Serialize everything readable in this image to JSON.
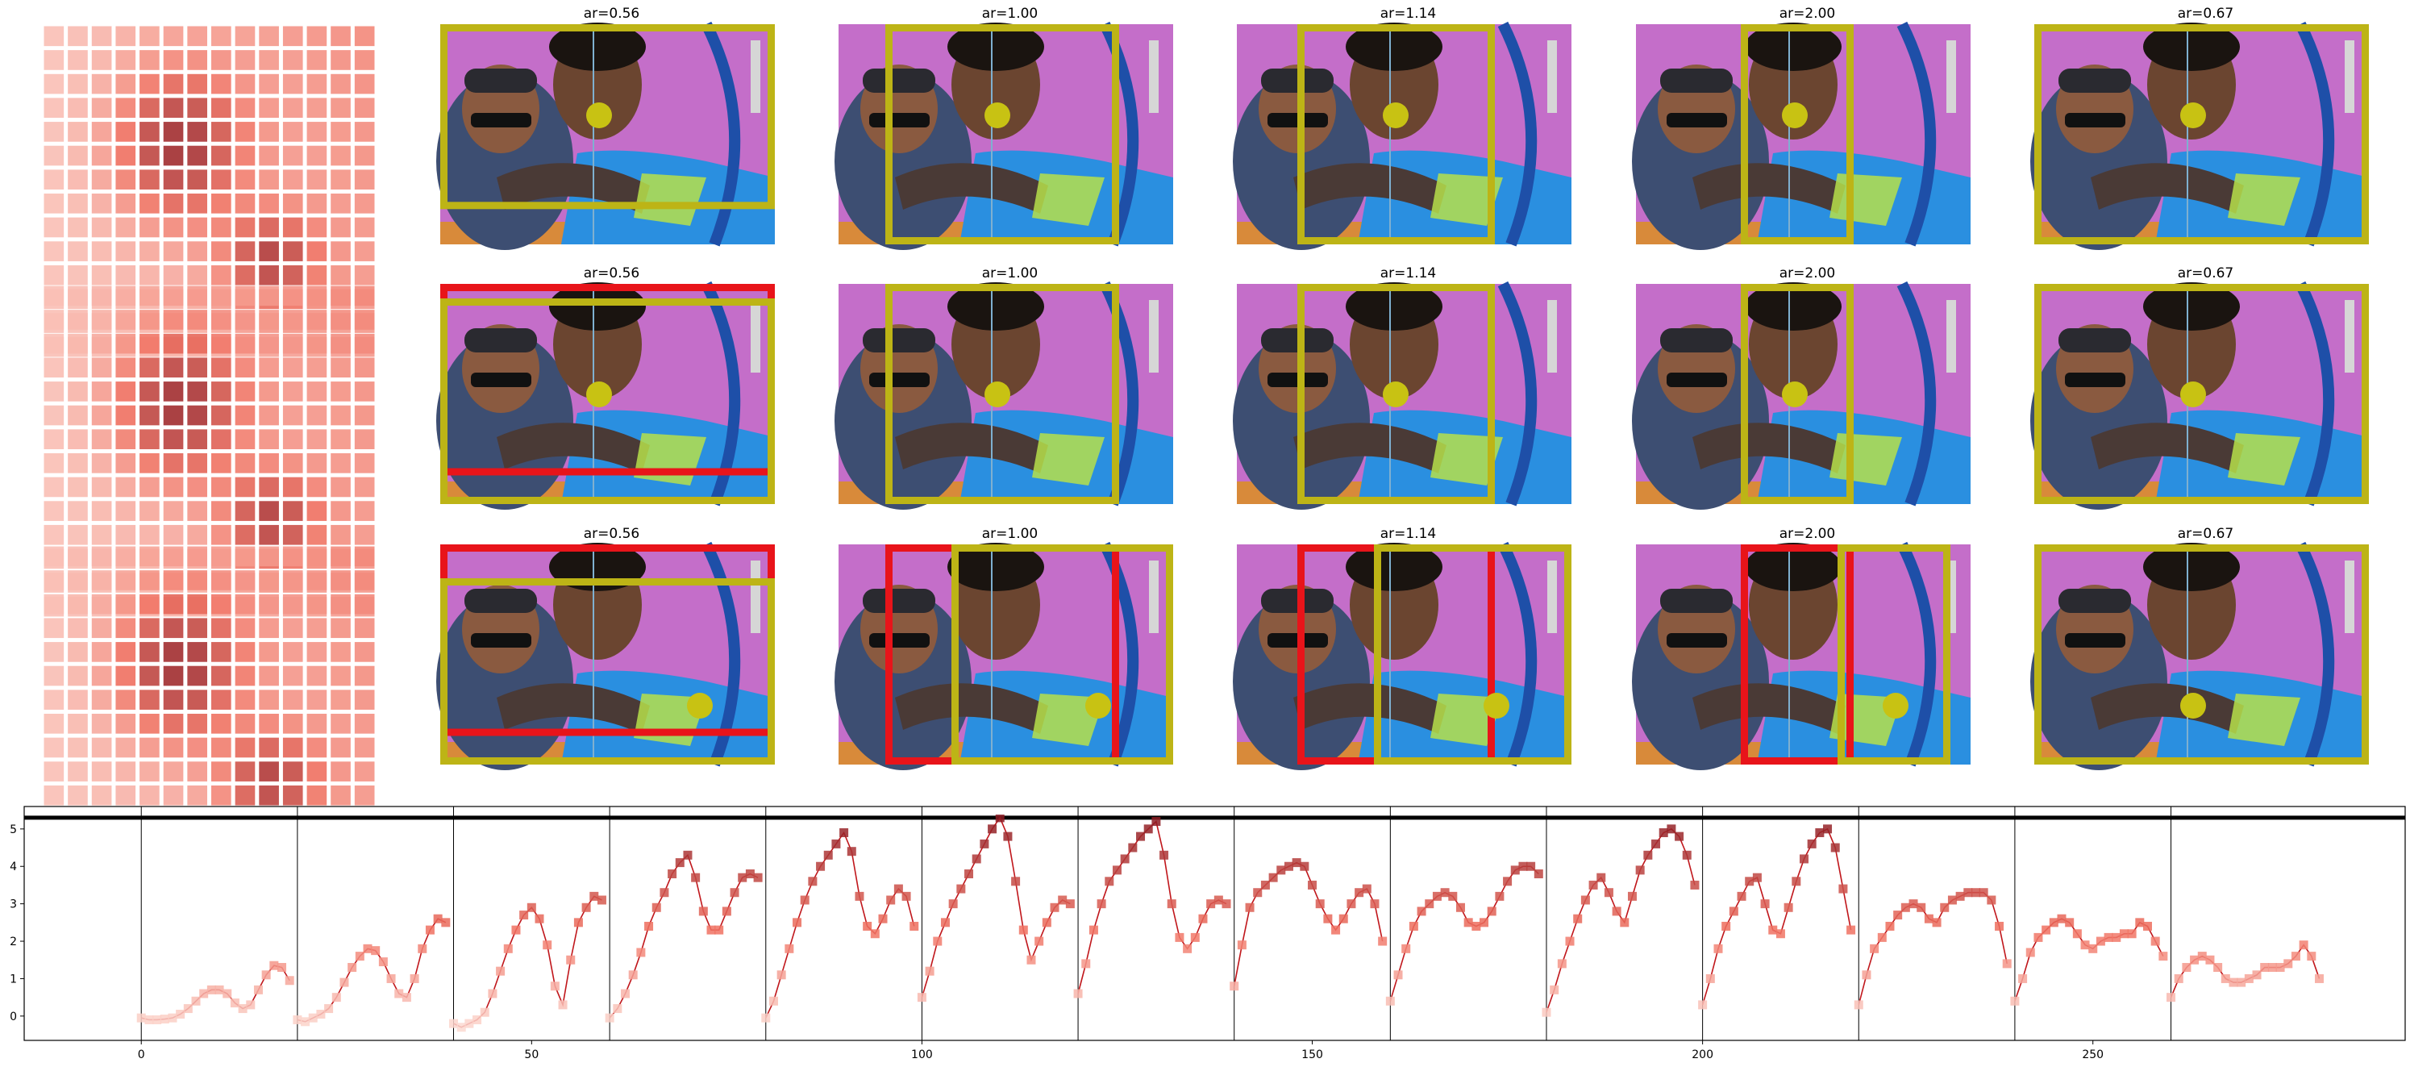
{
  "figure": {
    "rows": [
      {
        "panels": [
          {
            "title": "ar=0.56",
            "crop_aspect": 0.56,
            "has_red": false,
            "dot_label": "dot"
          },
          {
            "title": "ar=1.00",
            "crop_aspect": 1.0,
            "has_red": false
          },
          {
            "title": "ar=1.14",
            "crop_aspect": 1.14,
            "has_red": false
          },
          {
            "title": "ar=2.00",
            "crop_aspect": 2.0,
            "has_red": false
          },
          {
            "title": "ar=0.67",
            "crop_aspect": 0.67,
            "has_red": false
          }
        ]
      },
      {
        "panels": [
          {
            "title": "ar=0.56",
            "crop_aspect": 0.56,
            "has_red": true
          },
          {
            "title": "ar=1.00",
            "crop_aspect": 1.0,
            "has_red": false
          },
          {
            "title": "ar=1.14",
            "crop_aspect": 1.14,
            "has_red": false
          },
          {
            "title": "ar=2.00",
            "crop_aspect": 2.0,
            "has_red": false
          },
          {
            "title": "ar=0.67",
            "crop_aspect": 0.67,
            "has_red": false
          }
        ]
      },
      {
        "panels": [
          {
            "title": "ar=0.56",
            "crop_aspect": 0.56,
            "has_red": true
          },
          {
            "title": "ar=1.00",
            "crop_aspect": 1.0,
            "has_red": true
          },
          {
            "title": "ar=1.14",
            "crop_aspect": 1.14,
            "has_red": true
          },
          {
            "title": "ar=2.00",
            "crop_aspect": 2.0,
            "has_red": true
          },
          {
            "title": "ar=0.67",
            "crop_aspect": 0.67,
            "has_red": false
          }
        ]
      }
    ]
  },
  "colors": {
    "crop_box": "#bdb416",
    "red_box": "#e8141a",
    "dot": "#c8c213",
    "photo_bg": "#c46ec9",
    "shirt": "#2a8fe0",
    "skin": "#6b4530",
    "heat_low": "#fde7e0",
    "heat_high": "#8b1a22",
    "line": "#c0161b"
  },
  "chart_data": {
    "type": "line",
    "xlim": [
      -15,
      290
    ],
    "ylim": [
      -0.65,
      5.6
    ],
    "xticks": [
      0,
      50,
      100,
      150,
      200,
      250
    ],
    "yticks": [
      0,
      1,
      2,
      3,
      4,
      5
    ],
    "vlines": [
      0,
      20,
      40,
      60,
      80,
      100,
      120,
      140,
      160,
      180,
      200,
      220,
      240,
      260
    ],
    "hline": 5.3,
    "series": [
      {
        "x": [
          0,
          1,
          2,
          3,
          4,
          5,
          6,
          7,
          8,
          9,
          10,
          11,
          12,
          13,
          14,
          15,
          16,
          17,
          18,
          19,
          20,
          21,
          22,
          23,
          24,
          25,
          26,
          27,
          28,
          29,
          30,
          31,
          32,
          33,
          34,
          35,
          36,
          37,
          38,
          39,
          40,
          41,
          42,
          43,
          44,
          45,
          46,
          47,
          48,
          49,
          50,
          51,
          52,
          53,
          54,
          55,
          56,
          57,
          58,
          59,
          60,
          61,
          62,
          63,
          64,
          65,
          66,
          67,
          68,
          69,
          70,
          71,
          72,
          73,
          74,
          75,
          76,
          77,
          78,
          79,
          80,
          81,
          82,
          83,
          84,
          85,
          86,
          87,
          88,
          89,
          90,
          91,
          92,
          93,
          94,
          95,
          96,
          97,
          98,
          99,
          100,
          101,
          102,
          103,
          104,
          105,
          106,
          107,
          108,
          109,
          110,
          111,
          112,
          113,
          114,
          115,
          116,
          117,
          118,
          119,
          120,
          121,
          122,
          123,
          124,
          125,
          126,
          127,
          128,
          129,
          130,
          131,
          132,
          133,
          134,
          135,
          136,
          137,
          138,
          139,
          140,
          141,
          142,
          143,
          144,
          145,
          146,
          147,
          148,
          149,
          150,
          151,
          152,
          153,
          154,
          155,
          156,
          157,
          158,
          159,
          160,
          161,
          162,
          163,
          164,
          165,
          166,
          167,
          168,
          169,
          170,
          171,
          172,
          173,
          174,
          175,
          176,
          177,
          178,
          179,
          180,
          181,
          182,
          183,
          184,
          185,
          186,
          187,
          188,
          189,
          190,
          191,
          192,
          193,
          194,
          195,
          196,
          197,
          198,
          199,
          200,
          201,
          202,
          203,
          204,
          205,
          206,
          207,
          208,
          209,
          210,
          211,
          212,
          213,
          214,
          215,
          216,
          217,
          218,
          219,
          220,
          221,
          222,
          223,
          224,
          225,
          226,
          227,
          228,
          229,
          230,
          231,
          232,
          233,
          234,
          235,
          236,
          237,
          238,
          239,
          240,
          241,
          242,
          243,
          244,
          245,
          246,
          247,
          248,
          249,
          250,
          251,
          252,
          253,
          254,
          255,
          256,
          257,
          258,
          259,
          260,
          261,
          262,
          263,
          264,
          265,
          266,
          267,
          268,
          269,
          270,
          271,
          272,
          273,
          274,
          275,
          276,
          277,
          278,
          279
        ],
        "y": [
          -0.05,
          -0.1,
          -0.1,
          -0.08,
          -0.05,
          0.05,
          0.2,
          0.4,
          0.6,
          0.7,
          0.7,
          0.6,
          0.35,
          0.2,
          0.3,
          0.7,
          1.1,
          1.35,
          1.3,
          0.95,
          -0.1,
          -0.15,
          -0.05,
          0.05,
          0.2,
          0.5,
          0.9,
          1.3,
          1.6,
          1.8,
          1.75,
          1.45,
          1.0,
          0.6,
          0.5,
          1.0,
          1.8,
          2.3,
          2.6,
          2.5,
          -0.2,
          -0.3,
          -0.2,
          -0.1,
          0.1,
          0.6,
          1.2,
          1.8,
          2.3,
          2.7,
          2.9,
          2.6,
          1.9,
          0.8,
          0.3,
          1.5,
          2.5,
          2.9,
          3.2,
          3.1,
          -0.05,
          0.2,
          0.6,
          1.1,
          1.7,
          2.4,
          2.9,
          3.3,
          3.8,
          4.1,
          4.3,
          3.7,
          2.8,
          2.3,
          2.3,
          2.8,
          3.3,
          3.7,
          3.8,
          3.7,
          -0.05,
          0.4,
          1.1,
          1.8,
          2.5,
          3.1,
          3.6,
          4.0,
          4.3,
          4.6,
          4.9,
          4.4,
          3.2,
          2.4,
          2.2,
          2.6,
          3.1,
          3.4,
          3.2,
          2.4,
          0.5,
          1.2,
          2.0,
          2.5,
          3.0,
          3.4,
          3.8,
          4.2,
          4.6,
          5.0,
          5.3,
          4.8,
          3.6,
          2.3,
          1.5,
          2.0,
          2.5,
          2.9,
          3.1,
          3.0,
          0.6,
          1.4,
          2.3,
          3.0,
          3.6,
          3.9,
          4.2,
          4.5,
          4.8,
          5.0,
          5.2,
          4.3,
          3.0,
          2.1,
          1.8,
          2.1,
          2.6,
          3.0,
          3.1,
          3.0,
          0.8,
          1.9,
          2.9,
          3.3,
          3.5,
          3.7,
          3.9,
          4.0,
          4.1,
          4.0,
          3.5,
          3.0,
          2.6,
          2.3,
          2.6,
          3.0,
          3.3,
          3.4,
          3.0,
          2.0,
          0.4,
          1.1,
          1.8,
          2.4,
          2.8,
          3.0,
          3.2,
          3.3,
          3.2,
          2.9,
          2.5,
          2.4,
          2.5,
          2.8,
          3.2,
          3.6,
          3.9,
          4.0,
          4.0,
          3.8,
          0.1,
          0.7,
          1.4,
          2.0,
          2.6,
          3.1,
          3.5,
          3.7,
          3.3,
          2.8,
          2.5,
          3.2,
          3.9,
          4.3,
          4.6,
          4.9,
          5.0,
          4.8,
          4.3,
          3.5,
          0.3,
          1.0,
          1.8,
          2.4,
          2.8,
          3.2,
          3.6,
          3.7,
          3.0,
          2.3,
          2.2,
          2.9,
          3.6,
          4.2,
          4.6,
          4.9,
          5.0,
          4.5,
          3.4,
          2.3,
          0.3,
          1.1,
          1.8,
          2.1,
          2.4,
          2.7,
          2.9,
          3.0,
          2.9,
          2.6,
          2.5,
          2.9,
          3.1,
          3.2,
          3.3,
          3.3,
          3.3,
          3.1,
          2.4,
          1.4,
          0.4,
          1.0,
          1.7,
          2.1,
          2.3,
          2.5,
          2.6,
          2.5,
          2.2,
          1.9,
          1.8,
          2.0,
          2.1,
          2.1,
          2.2,
          2.2,
          2.5,
          2.4,
          2.0,
          1.6,
          0.5,
          1.0,
          1.3,
          1.5,
          1.6,
          1.5,
          1.3,
          1.0,
          0.9,
          0.9,
          1.0,
          1.1,
          1.3,
          1.3,
          1.3,
          1.4,
          1.6,
          1.9,
          1.6,
          1.0
        ]
      }
    ]
  }
}
